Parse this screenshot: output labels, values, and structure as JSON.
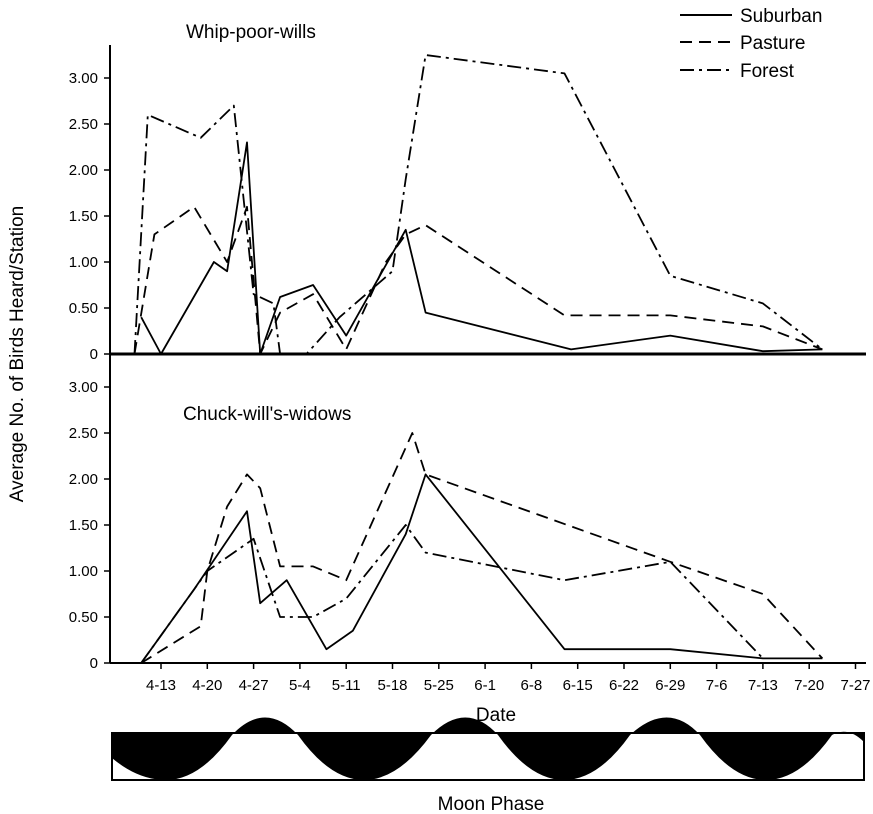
{
  "chart_data": {
    "type": "line",
    "ylabel": "Average No. of Birds Heard/Station",
    "xlabel": "Date",
    "x_ticks": [
      "4-13",
      "4-20",
      "4-27",
      "5-4",
      "5-11",
      "5-18",
      "5-25",
      "6-1",
      "6-8",
      "6-15",
      "6-22",
      "6-29",
      "7-6",
      "7-13",
      "7-20",
      "7-27"
    ],
    "y_ticks": [
      "0",
      "0.50",
      "1.00",
      "1.50",
      "2.00",
      "2.50",
      "3.00"
    ],
    "ylim": [
      0,
      3.0
    ],
    "legend": {
      "placement": "top-right",
      "entries": [
        {
          "name": "Suburban",
          "dash": "solid"
        },
        {
          "name": "Pasture",
          "dash": "dashed"
        },
        {
          "name": "Forest",
          "dash": "dash-dot"
        }
      ]
    },
    "panels": [
      {
        "title": "Whip-poor-wills",
        "series": [
          {
            "name": "Suburban",
            "points": [
              [
                "4-10",
                0.4
              ],
              [
                "4-13",
                0.0
              ],
              [
                "4-21",
                1.0
              ],
              [
                "4-23",
                0.9
              ],
              [
                "4-26",
                2.3
              ],
              [
                "4-28",
                0.0
              ],
              [
                "5-1",
                0.62
              ],
              [
                "5-6",
                0.75
              ],
              [
                "5-11",
                0.2
              ],
              [
                "5-20",
                1.35
              ],
              [
                "5-23",
                0.45
              ],
              [
                "6-14",
                0.05
              ],
              [
                "6-29",
                0.2
              ],
              [
                "7-13",
                0.03
              ],
              [
                "7-22",
                0.05
              ]
            ]
          },
          {
            "name": "Pasture",
            "points": [
              [
                "4-9",
                0.0
              ],
              [
                "4-12",
                1.3
              ],
              [
                "4-18",
                1.6
              ],
              [
                "4-23",
                1.0
              ],
              [
                "4-26",
                1.6
              ],
              [
                "4-28",
                0.0
              ],
              [
                "5-1",
                0.45
              ],
              [
                "5-6",
                0.65
              ],
              [
                "5-11",
                0.05
              ],
              [
                "5-17",
                1.0
              ],
              [
                "5-20",
                1.3
              ],
              [
                "5-23",
                1.4
              ],
              [
                "6-13",
                0.42
              ],
              [
                "6-29",
                0.42
              ],
              [
                "7-13",
                0.3
              ],
              [
                "7-22",
                0.05
              ]
            ]
          },
          {
            "name": "Forest",
            "points": [
              [
                "4-9",
                0.0
              ],
              [
                "4-11",
                2.6
              ],
              [
                "4-19",
                2.35
              ],
              [
                "4-24",
                2.7
              ],
              [
                "4-27",
                0.65
              ],
              [
                "4-30",
                0.55
              ],
              [
                "5-1",
                0.0
              ],
              [
                "5-5",
                0.0
              ],
              [
                "5-10",
                0.4
              ],
              [
                "5-18",
                0.9
              ],
              [
                "5-20",
                1.9
              ],
              [
                "5-23",
                3.25
              ],
              [
                "6-13",
                3.05
              ],
              [
                "6-29",
                0.85
              ],
              [
                "7-13",
                0.55
              ],
              [
                "7-22",
                0.05
              ]
            ]
          }
        ]
      },
      {
        "title": "Chuck-will's-widows",
        "series": [
          {
            "name": "Suburban",
            "points": [
              [
                "4-10",
                0.0
              ],
              [
                "4-18",
                0.8
              ],
              [
                "4-26",
                1.65
              ],
              [
                "4-28",
                0.65
              ],
              [
                "5-2",
                0.9
              ],
              [
                "5-8",
                0.15
              ],
              [
                "5-12",
                0.35
              ],
              [
                "5-20",
                1.4
              ],
              [
                "5-23",
                2.05
              ],
              [
                "6-13",
                0.15
              ],
              [
                "6-29",
                0.15
              ],
              [
                "7-13",
                0.05
              ],
              [
                "7-22",
                0.05
              ]
            ]
          },
          {
            "name": "Pasture",
            "points": [
              [
                "4-10",
                0.0
              ],
              [
                "4-19",
                0.4
              ],
              [
                "4-20",
                1.0
              ],
              [
                "4-23",
                1.7
              ],
              [
                "4-26",
                2.05
              ],
              [
                "4-28",
                1.9
              ],
              [
                "5-1",
                1.05
              ],
              [
                "5-6",
                1.05
              ],
              [
                "5-11",
                0.9
              ],
              [
                "5-21",
                2.5
              ],
              [
                "5-23",
                2.05
              ],
              [
                "6-29",
                1.1
              ],
              [
                "7-13",
                0.75
              ],
              [
                "7-22",
                0.05
              ]
            ]
          },
          {
            "name": "Forest",
            "points": [
              [
                "4-10",
                0.0
              ],
              [
                "4-20",
                1.0
              ],
              [
                "4-27",
                1.35
              ],
              [
                "5-1",
                0.5
              ],
              [
                "5-6",
                0.5
              ],
              [
                "5-11",
                0.7
              ],
              [
                "5-20",
                1.5
              ],
              [
                "5-23",
                1.2
              ],
              [
                "6-13",
                0.9
              ],
              [
                "6-29",
                1.1
              ],
              [
                "7-13",
                0.05
              ]
            ]
          }
        ]
      }
    ]
  },
  "moon": {
    "label": "Moon Phase"
  }
}
